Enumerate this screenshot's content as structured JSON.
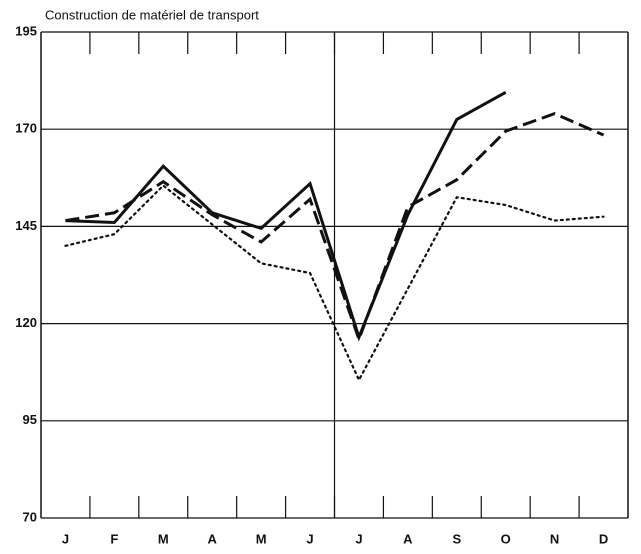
{
  "chart_data": {
    "type": "line",
    "title": "Construction de matériel de transport",
    "categories": [
      "J",
      "F",
      "M",
      "A",
      "M",
      "J",
      "J",
      "A",
      "S",
      "O",
      "N",
      "D"
    ],
    "series": [
      {
        "color": "#111111",
        "style": "solid",
        "values": [
          146.5,
          146,
          160.5,
          148.5,
          144.5,
          156,
          116.5,
          148,
          172.5,
          179.5,
          null,
          null
        ]
      },
      {
        "color": "#111111",
        "style": "dashed",
        "values": [
          146.5,
          148.5,
          156.5,
          148,
          141,
          152,
          116,
          150,
          157,
          169.5,
          174,
          168.5
        ]
      },
      {
        "color": "#111111",
        "style": "dotted",
        "values": [
          140,
          143,
          155.5,
          145.5,
          135.5,
          133,
          105.5,
          129,
          152.5,
          150.5,
          146.5,
          147.5
        ]
      }
    ],
    "ylim": [
      70,
      195
    ],
    "yticks": [
      70,
      95,
      120,
      145,
      170,
      195
    ],
    "grid": true
  }
}
